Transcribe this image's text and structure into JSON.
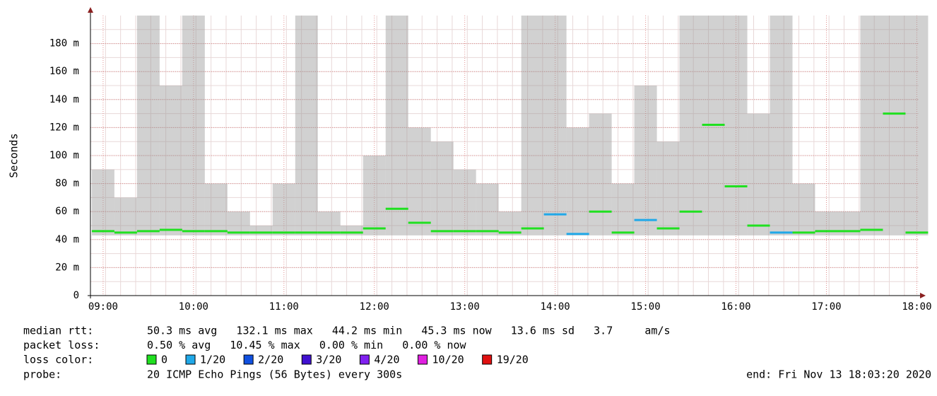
{
  "chart_data": {
    "type": "smokeping",
    "ylabel": "Seconds",
    "x": [
      9.0,
      9.25,
      9.5,
      9.75,
      10.0,
      10.25,
      10.5,
      10.75,
      11.0,
      11.25,
      11.5,
      11.75,
      12.0,
      12.25,
      12.5,
      12.75,
      13.0,
      13.25,
      13.5,
      13.75,
      14.0,
      14.25,
      14.5,
      14.75,
      15.0,
      15.25,
      15.5,
      15.75,
      16.0,
      16.25,
      16.5,
      16.75,
      17.0,
      17.25,
      17.5,
      17.75,
      18.0
    ],
    "median": [
      46,
      45,
      46,
      47,
      46,
      46,
      45,
      45,
      45,
      45,
      45,
      45,
      48,
      62,
      52,
      46,
      46,
      46,
      45,
      48,
      58,
      44,
      60,
      45,
      54,
      48,
      60,
      122,
      78,
      50,
      45,
      45,
      46,
      46,
      47,
      130,
      45
    ],
    "loss_index": [
      0,
      0,
      0,
      0,
      0,
      0,
      0,
      0,
      0,
      0,
      0,
      0,
      0,
      0,
      0,
      0,
      0,
      0,
      0,
      0,
      1,
      1,
      0,
      0,
      1,
      0,
      0,
      0,
      0,
      0,
      1,
      0,
      0,
      0,
      0,
      0,
      0
    ],
    "smoke_max": [
      90,
      70,
      200,
      150,
      200,
      80,
      60,
      50,
      80,
      200,
      60,
      50,
      100,
      200,
      120,
      110,
      90,
      80,
      60,
      200,
      200,
      120,
      130,
      80,
      150,
      110,
      200,
      200,
      200,
      130,
      200,
      80,
      60,
      60,
      200,
      200,
      200
    ],
    "smoke_color": "#9a9a9a",
    "xlim": [
      8.86,
      18.02
    ],
    "xticks": [
      {
        "value": 9,
        "label": "09:00"
      },
      {
        "value": 10,
        "label": "10:00"
      },
      {
        "value": 11,
        "label": "11:00"
      },
      {
        "value": 12,
        "label": "12:00"
      },
      {
        "value": 13,
        "label": "13:00"
      },
      {
        "value": 14,
        "label": "14:00"
      },
      {
        "value": 15,
        "label": "15:00"
      },
      {
        "value": 16,
        "label": "16:00"
      },
      {
        "value": 17,
        "label": "17:00"
      },
      {
        "value": 18,
        "label": "18:00"
      }
    ],
    "ylim": [
      0,
      200
    ],
    "yticks": [
      0,
      {
        "value": 20,
        "label": "20 m"
      },
      {
        "value": 40,
        "label": "40 m"
      },
      {
        "value": 60,
        "label": "60 m"
      },
      {
        "value": 80,
        "label": "80 m"
      },
      {
        "value": 100,
        "label": "100 m"
      },
      {
        "value": 120,
        "label": "120 m"
      },
      {
        "value": 140,
        "label": "140 m"
      },
      {
        "value": 160,
        "label": "160 m"
      },
      {
        "value": 180,
        "label": "180 m"
      }
    ],
    "grid": true,
    "stats": [
      {
        "label": "median rtt:",
        "text": "50.3 ms avg   132.1 ms max   44.2 ms min   45.3 ms now   13.6 ms sd   3.7     am/s"
      },
      {
        "label": "packet loss:",
        "text": "0.50 % avg   10.45 % max   0.00 % min   0.00 % now"
      }
    ],
    "legend_label": "loss color:",
    "legend": [
      {
        "name": "0",
        "color": "#20e020"
      },
      {
        "name": "1/20",
        "color": "#20a8e8"
      },
      {
        "name": "2/20",
        "color": "#1050e0"
      },
      {
        "name": "3/20",
        "color": "#4010d0"
      },
      {
        "name": "4/20",
        "color": "#8020f0"
      },
      {
        "name": "10/20",
        "color": "#e020e0"
      },
      {
        "name": "19/20",
        "color": "#e01010"
      }
    ],
    "probe_label": "probe:",
    "probe": "20 ICMP Echo Pings (56 Bytes) every 300s",
    "end": "end: Fri Nov 13 18:03:20 2020"
  }
}
